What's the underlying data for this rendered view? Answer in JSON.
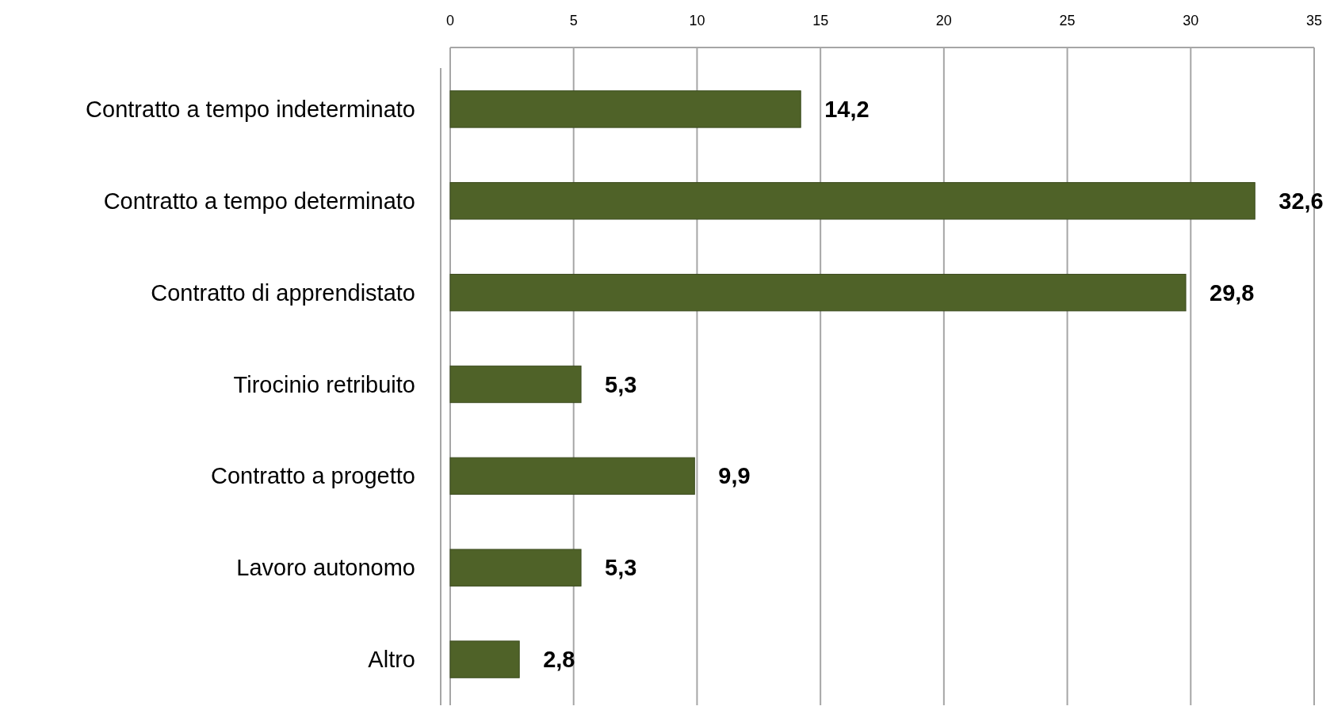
{
  "chart_data": {
    "type": "bar",
    "orientation": "horizontal",
    "categories": [
      "Contratto a tempo indeterminato",
      "Contratto a tempo determinato",
      "Contratto di apprendistato",
      "Tirocinio retribuito",
      "Contratto a progetto",
      "Lavoro autonomo",
      "Altro"
    ],
    "values": [
      14.2,
      32.6,
      29.8,
      5.3,
      9.9,
      5.3,
      2.8
    ],
    "value_labels": [
      "14,2",
      "32,6",
      "29,8",
      "5,3",
      "9,9",
      "5,3",
      "2,8"
    ],
    "color": "#4f6228",
    "xlim": [
      0,
      35
    ],
    "xticks": [
      0,
      5,
      10,
      15,
      20,
      25,
      30,
      35
    ],
    "grid": "x"
  }
}
